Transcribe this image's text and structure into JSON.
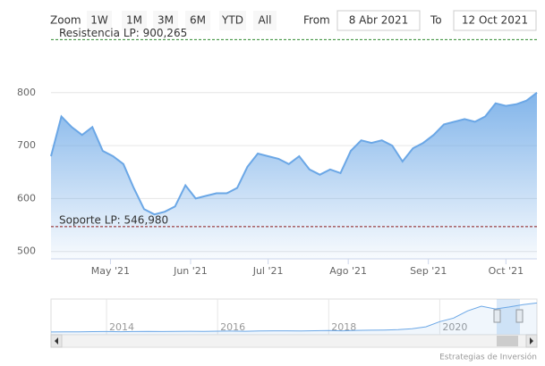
{
  "chart_data": {
    "type": "area",
    "zoom_label": "Zoom",
    "buttons": [
      "1W",
      "1M",
      "3M",
      "6M",
      "YTD",
      "All"
    ],
    "from_label": "From",
    "from_value": "8 Abr 2021",
    "to_label": "To",
    "to_value": "12 Oct 2021",
    "color": "#6ba7e6",
    "categories": [
      null,
      null,
      null,
      null,
      null,
      null,
      null,
      null,
      null,
      null,
      null,
      null,
      null,
      null,
      null,
      null,
      null,
      null,
      null,
      null,
      null,
      null,
      null,
      null,
      null,
      null,
      null,
      null,
      null,
      null,
      null,
      null,
      null,
      null,
      null,
      null,
      null,
      null,
      null,
      null,
      null,
      null,
      null,
      null,
      null,
      null,
      null,
      null
    ],
    "values": [
      680,
      755,
      735,
      720,
      735,
      690,
      680,
      665,
      620,
      580,
      570,
      575,
      585,
      625,
      600,
      605,
      610,
      610,
      620,
      660,
      685,
      680,
      675,
      665,
      680,
      655,
      645,
      655,
      648,
      690,
      710,
      705,
      710,
      700,
      670,
      695,
      705,
      720,
      740,
      745,
      750,
      745,
      755,
      780,
      775,
      778,
      785,
      800
    ],
    "xlim": [
      0,
      47
    ],
    "xticks": [
      {
        "value": 5.75,
        "label": "May '21"
      },
      {
        "value": 13.5,
        "label": "Jun '21"
      },
      {
        "value": 21,
        "label": "Jul '21"
      },
      {
        "value": 28.75,
        "label": "Ago '21"
      },
      {
        "value": 36.5,
        "label": "Sep '21"
      },
      {
        "value": 44,
        "label": "Oct '21"
      }
    ],
    "ylim": [
      486,
      916
    ],
    "yticks": [
      500,
      600,
      700,
      800
    ],
    "grid": true,
    "plot_lines": [
      {
        "label": "Resistencia LP: 900,265",
        "value": 900.265,
        "color": "#2e8b2e"
      },
      {
        "label": "Soporte LP: 546,980",
        "value": 546.98,
        "color": "#8b1a1a"
      }
    ],
    "navigator": {
      "categories": [
        null,
        null,
        null,
        null,
        null,
        null,
        null,
        null,
        null,
        null,
        null,
        null,
        null,
        null,
        null,
        null,
        null,
        null,
        null,
        null,
        null,
        null,
        null,
        null,
        null,
        null,
        null,
        null,
        null,
        null,
        null,
        null,
        null,
        null,
        null,
        null
      ],
      "values": [
        70,
        75,
        72,
        78,
        80,
        76,
        82,
        85,
        80,
        84,
        88,
        86,
        90,
        92,
        88,
        95,
        98,
        100,
        96,
        102,
        105,
        100,
        110,
        115,
        120,
        130,
        150,
        200,
        330,
        420,
        600,
        720,
        650,
        700,
        760,
        800
      ],
      "xlim": [
        0,
        35
      ],
      "ylim": [
        0,
        900
      ],
      "xticks": [
        {
          "value": 4,
          "label": "2014"
        },
        {
          "value": 12,
          "label": "2016"
        },
        {
          "value": 20,
          "label": "2018"
        },
        {
          "value": 28,
          "label": "2020"
        }
      ]
    },
    "credits": "Estrategias de Inversión"
  }
}
